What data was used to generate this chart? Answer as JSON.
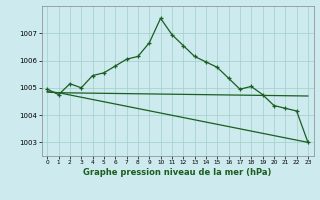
{
  "xlabel": "Graphe pression niveau de la mer (hPa)",
  "background_color": "#cdeaee",
  "grid_color": "#9ecfca",
  "line_color": "#1a5e20",
  "xlim": [
    -0.5,
    23.5
  ],
  "ylim": [
    1002.5,
    1008.0
  ],
  "yticks": [
    1003,
    1004,
    1005,
    1006,
    1007
  ],
  "xticks": [
    0,
    1,
    2,
    3,
    4,
    5,
    6,
    7,
    8,
    9,
    10,
    11,
    12,
    13,
    14,
    15,
    16,
    17,
    18,
    19,
    20,
    21,
    22,
    23
  ],
  "series1_x": [
    0,
    1,
    2,
    3,
    4,
    5,
    6,
    7,
    8,
    9,
    10,
    11,
    12,
    13,
    14,
    15,
    16,
    17,
    18,
    19,
    20,
    21,
    22,
    23
  ],
  "series1_y": [
    1004.95,
    1004.75,
    1005.15,
    1005.0,
    1005.45,
    1005.55,
    1005.8,
    1006.05,
    1006.15,
    1006.65,
    1007.55,
    1006.95,
    1006.55,
    1006.15,
    1005.95,
    1005.75,
    1005.35,
    1004.95,
    1005.05,
    1004.75,
    1004.35,
    1004.25,
    1004.15,
    1003.0
  ],
  "series2_x": [
    0,
    1,
    23
  ],
  "series2_y": [
    1004.85,
    1004.82,
    1004.7
  ],
  "series3_x": [
    0,
    1,
    23
  ],
  "series3_y": [
    1004.85,
    1004.82,
    1003.0
  ]
}
